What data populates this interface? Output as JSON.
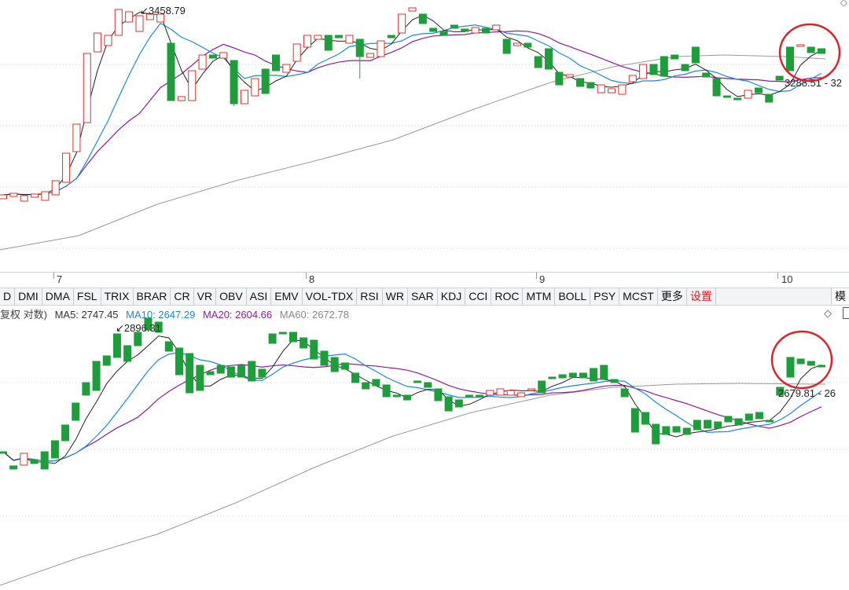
{
  "colors": {
    "up": "#e0302a",
    "down": "#1e9e3a",
    "ma_black": "#222222",
    "ma_blue": "#1f8ad8",
    "ma_purple": "#8b1e9e",
    "ma_gray": "#9a9a9a",
    "circle": "#e0202a"
  },
  "time_axis": {
    "labels": [
      {
        "text": "7",
        "x": 72
      },
      {
        "text": "8",
        "x": 393
      },
      {
        "text": "9",
        "x": 686
      },
      {
        "text": "10",
        "x": 994
      }
    ]
  },
  "tabs": [
    "D",
    "DMI",
    "DMA",
    "FSL",
    "TRIX",
    "BRAR",
    "CR",
    "VR",
    "OBV",
    "ASI",
    "EMV",
    "VOL-TDX",
    "RSI",
    "WR",
    "SAR",
    "KDJ",
    "CCI",
    "ROC",
    "MTM",
    "BOLL",
    "PSY",
    "MCST",
    "更多",
    "设置"
  ],
  "tab_right": "模",
  "top_panel": {
    "header_fragment": "复权 对数)",
    "high_label": "3458.79",
    "last_label": "3288.51 - 32",
    "corner_icon": "diamond-icon"
  },
  "bottom_panel": {
    "legend": {
      "prefix": "复权 对数)",
      "ma5": "MA5: 2747.45",
      "ma10": "MA10: 2647.29",
      "ma20": "MA20: 2604.66",
      "ma60": "MA60: 2672.78"
    },
    "high_label": "2896.31",
    "last_label": "2679.81 - 26",
    "corner_icon": "diamond-icon"
  },
  "chart_data": [
    {
      "type": "candlestick",
      "panel": "top",
      "high": 3458.79,
      "last": 3288.51,
      "candles_otc": [
        [
          253,
          248,
          255,
          245
        ],
        [
          250,
          246,
          252,
          243
        ],
        [
          256,
          249,
          258,
          246
        ],
        [
          251,
          247,
          255,
          245
        ],
        [
          255,
          244,
          257,
          242
        ],
        [
          248,
          230,
          250,
          228
        ],
        [
          232,
          195,
          235,
          192
        ],
        [
          193,
          158,
          196,
          155
        ],
        [
          156,
          68,
          160,
          65
        ],
        [
          66,
          42,
          70,
          38
        ],
        [
          58,
          45,
          63,
          40
        ],
        [
          45,
          12,
          50,
          10
        ],
        [
          28,
          15,
          32,
          13
        ],
        [
          40,
          20,
          45,
          17
        ],
        [
          25,
          18,
          30,
          15
        ],
        [
          28,
          18,
          34,
          15
        ],
        [
          55,
          128,
          57,
          122
        ],
        [
          128,
          123,
          138,
          120
        ],
        [
          128,
          90,
          132,
          86
        ],
        [
          88,
          70,
          92,
          68
        ],
        [
          70,
          74,
          78,
          63
        ],
        [
          74,
          67,
          80,
          62
        ],
        [
          77,
          132,
          82,
          135
        ],
        [
          132,
          115,
          143,
          112
        ],
        [
          122,
          100,
          126,
          95
        ],
        [
          88,
          119,
          92,
          116
        ],
        [
          70,
          90,
          77,
          80
        ],
        [
          92,
          82,
          100,
          75
        ],
        [
          78,
          56,
          83,
          50
        ],
        [
          60,
          45,
          65,
          40
        ],
        [
          50,
          45,
          58,
          42
        ],
        [
          45,
          64,
          65,
          41
        ],
        [
          45,
          48,
          55,
          40
        ],
        [
          55,
          45,
          63,
          40
        ],
        [
          50,
          72,
          58,
          100
        ],
        [
          73,
          68,
          82,
          65
        ],
        [
          72,
          52,
          77,
          50
        ],
        [
          45,
          48,
          55,
          40
        ],
        [
          42,
          18,
          50,
          15
        ],
        [
          14,
          10,
          18,
          8
        ],
        [
          18,
          30,
          22,
          28
        ],
        [
          36,
          40,
          44,
          25
        ],
        [
          40,
          45,
          50,
          35
        ],
        [
          32,
          36,
          36,
          28
        ],
        [
          37,
          40,
          45,
          35
        ],
        [
          42,
          35,
          50,
          30
        ],
        [
          36,
          42,
          44,
          32
        ],
        [
          38,
          32,
          42,
          30
        ],
        [
          50,
          68,
          57,
          46
        ],
        [
          58,
          55,
          68,
          52
        ],
        [
          55,
          60,
          65,
          50
        ],
        [
          72,
          86,
          78,
          60
        ],
        [
          62,
          88,
          72,
          48
        ],
        [
          92,
          108,
          96,
          90
        ],
        [
          98,
          95,
          108,
          92
        ],
        [
          100,
          110,
          115,
          92
        ],
        [
          105,
          112,
          118,
          100
        ],
        [
          118,
          108,
          120,
          95
        ],
        [
          118,
          113,
          120,
          108
        ],
        [
          120,
          108,
          125,
          105
        ],
        [
          104,
          96,
          108,
          92
        ],
        [
          100,
          82,
          105,
          78
        ],
        [
          82,
          95,
          90,
          80
        ],
        [
          72,
          97,
          98,
          68
        ],
        [
          70,
          75,
          75,
          72
        ],
        [
          82,
          90,
          84,
          88
        ],
        [
          60,
          80,
          66,
          58
        ],
        [
          93,
          98,
          98,
          70
        ],
        [
          100,
          122,
          108,
          115
        ],
        [
          122,
          122,
          125,
          115
        ],
        [
          125,
          125,
          130,
          118
        ],
        [
          125,
          115,
          130,
          112
        ],
        [
          112,
          118,
          125,
          110
        ],
        [
          120,
          130,
          120,
          128
        ],
        [
          97,
          102,
          120,
          92
        ],
        [
          60,
          90,
          100,
          55
        ],
        [
          58,
          57,
          65,
          52
        ],
        [
          60,
          67,
          66,
          52
        ],
        [
          62,
          68,
          65,
          58
        ]
      ]
    },
    {
      "type": "candlestick",
      "panel": "bottom",
      "high": 2896.31,
      "last": 2679.81,
      "ma": {
        "MA5": 2747.45,
        "MA10": 2647.29,
        "MA20": 2604.66,
        "MA60": 2672.78
      },
      "candles_otc": [
        [
          190,
          190,
          200,
          185
        ],
        [
          208,
          212,
          215,
          205
        ],
        [
          207,
          192,
          210,
          188
        ],
        [
          200,
          205,
          212,
          195
        ],
        [
          190,
          212,
          215,
          185
        ],
        [
          176,
          198,
          202,
          170
        ],
        [
          156,
          176,
          180,
          152
        ],
        [
          128,
          150,
          152,
          125
        ],
        [
          102,
          118,
          122,
          100
        ],
        [
          75,
          112,
          80,
          70
        ],
        [
          68,
          80,
          75,
          65
        ],
        [
          40,
          70,
          48,
          35
        ],
        [
          55,
          75,
          60,
          52
        ],
        [
          38,
          55,
          42,
          35
        ],
        [
          20,
          35,
          25,
          18
        ],
        [
          25,
          38,
          28,
          22
        ],
        [
          50,
          62,
          55,
          45
        ],
        [
          58,
          92,
          62,
          85
        ],
        [
          65,
          115,
          68,
          108
        ],
        [
          80,
          112,
          85,
          95
        ],
        [
          88,
          92,
          95,
          82
        ],
        [
          80,
          90,
          85,
          75
        ],
        [
          82,
          95,
          90,
          75
        ],
        [
          80,
          95,
          90,
          75
        ],
        [
          75,
          100,
          80,
          92
        ],
        [
          85,
          95,
          90,
          75
        ],
        [
          40,
          52,
          48,
          35
        ],
        [
          38,
          40,
          40,
          30
        ],
        [
          38,
          50,
          43,
          30
        ],
        [
          45,
          58,
          50,
          35
        ],
        [
          48,
          72,
          68,
          42
        ],
        [
          62,
          80,
          75,
          55
        ],
        [
          70,
          88,
          82,
          62
        ],
        [
          77,
          85,
          85,
          70
        ],
        [
          90,
          102,
          98,
          88
        ],
        [
          102,
          110,
          112,
          95
        ],
        [
          98,
          106,
          105,
          92
        ],
        [
          105,
          120,
          115,
          100
        ],
        [
          118,
          120,
          125,
          108
        ],
        [
          118,
          124,
          124,
          115
        ],
        [
          100,
          100,
          112,
          95
        ],
        [
          102,
          108,
          108,
          90
        ],
        [
          110,
          125,
          120,
          105
        ],
        [
          120,
          138,
          128,
          115
        ],
        [
          124,
          133,
          132,
          118
        ],
        [
          118,
          118,
          128,
          110
        ],
        [
          118,
          120,
          125,
          110
        ],
        [
          118,
          112,
          125,
          105
        ],
        [
          118,
          110,
          120,
          105
        ],
        [
          118,
          112,
          122,
          108
        ],
        [
          120,
          115,
          128,
          108
        ],
        [
          112,
          110,
          120,
          102
        ],
        [
          100,
          115,
          108,
          95
        ],
        [
          95,
          95,
          105,
          90
        ],
        [
          92,
          96,
          97,
          86
        ],
        [
          90,
          95,
          97,
          85
        ],
        [
          90,
          96,
          98,
          85
        ],
        [
          84,
          100,
          88,
          80
        ],
        [
          80,
          98,
          85,
          78
        ],
        [
          98,
          102,
          102,
          90
        ],
        [
          110,
          120,
          115,
          108
        ],
        [
          135,
          165,
          140,
          160
        ],
        [
          140,
          155,
          145,
          148
        ],
        [
          155,
          180,
          160,
          175
        ],
        [
          158,
          168,
          162,
          165
        ],
        [
          158,
          165,
          160,
          162
        ],
        [
          160,
          168,
          162,
          165
        ],
        [
          150,
          162,
          155,
          158
        ],
        [
          150,
          160,
          155,
          158
        ],
        [
          152,
          160,
          157,
          158
        ],
        [
          145,
          152,
          150,
          150
        ],
        [
          148,
          156,
          153,
          152
        ],
        [
          142,
          150,
          148,
          150
        ],
        [
          140,
          148,
          144,
          145
        ],
        [
          150,
          152,
          152,
          148
        ],
        [
          108,
          118,
          115,
          110
        ],
        [
          70,
          95,
          75,
          90
        ],
        [
          72,
          78,
          75,
          70
        ],
        [
          75,
          80,
          80,
          72
        ],
        [
          80,
          80,
          82,
          75
        ]
      ]
    }
  ]
}
